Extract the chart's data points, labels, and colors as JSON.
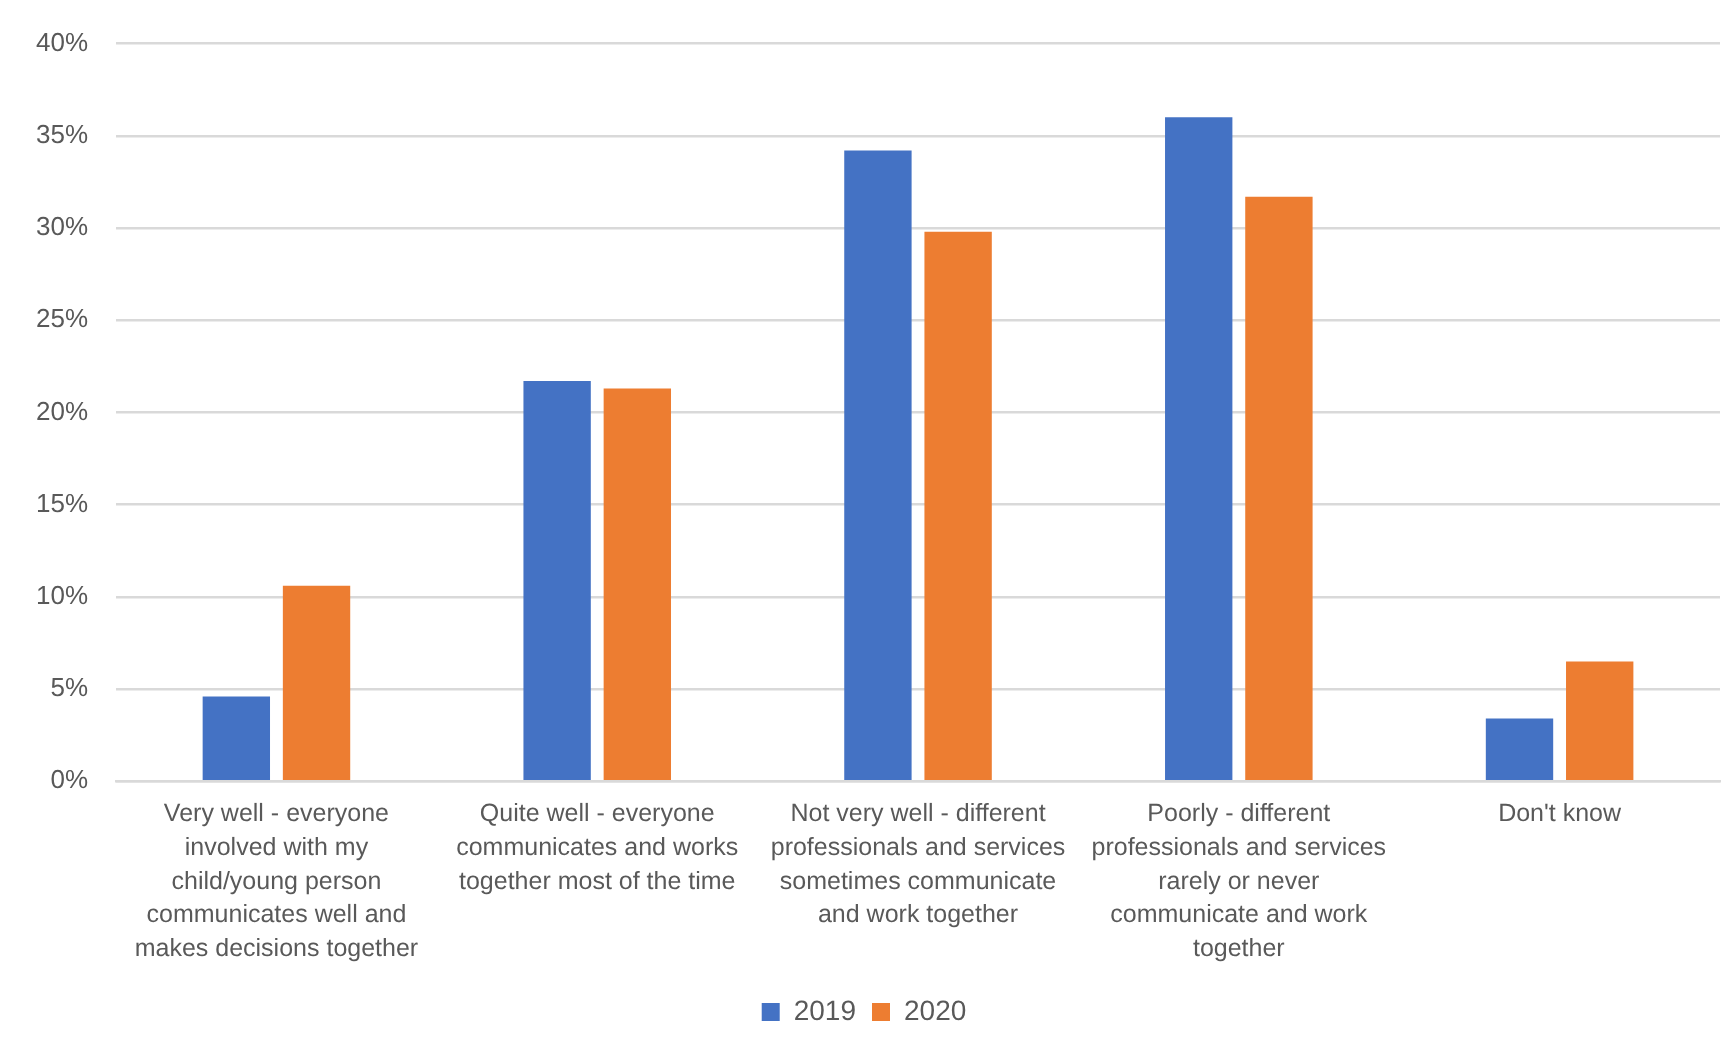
{
  "chart_data": {
    "type": "bar",
    "categories": [
      "Very well - everyone involved with my child/young person communicates well and makes decisions together",
      "Quite well - everyone communicates and works together most of the time",
      "Not very well - different professionals and services sometimes communicate and work together",
      "Poorly - different professionals and services rarely or never communicate and work together",
      "Don't know"
    ],
    "series": [
      {
        "name": "2019",
        "color": "#4472c4",
        "values": [
          4.6,
          21.7,
          34.2,
          36.0,
          3.4
        ]
      },
      {
        "name": "2020",
        "color": "#ed7d31",
        "values": [
          10.6,
          21.3,
          29.8,
          31.7,
          6.5
        ]
      }
    ],
    "ylim": [
      0,
      40
    ],
    "yticks": [
      {
        "value": 0,
        "label": "0%"
      },
      {
        "value": 5,
        "label": "5%"
      },
      {
        "value": 10,
        "label": "10%"
      },
      {
        "value": 15,
        "label": "15%"
      },
      {
        "value": 20,
        "label": "20%"
      },
      {
        "value": 25,
        "label": "25%"
      },
      {
        "value": 30,
        "label": "30%"
      },
      {
        "value": 35,
        "label": "35%"
      },
      {
        "value": 40,
        "label": "40%"
      }
    ],
    "grid": "y",
    "legend": "bottom"
  }
}
